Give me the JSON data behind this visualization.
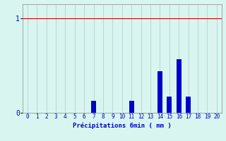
{
  "values": [
    0,
    0,
    0,
    0,
    0,
    0,
    0,
    0.13,
    0,
    0,
    0,
    0.13,
    0,
    0,
    0.44,
    0.17,
    0.57,
    0.17,
    0,
    0,
    0
  ],
  "categories": [
    0,
    1,
    2,
    3,
    4,
    5,
    6,
    7,
    8,
    9,
    10,
    11,
    12,
    13,
    14,
    15,
    16,
    17,
    18,
    19,
    20
  ],
  "bar_color": "#0000cc",
  "background_color": "#d8f5f0",
  "grid_color": "#b0c8c8",
  "hline_color": "#cc0000",
  "text_color": "#0000cc",
  "xlabel": "Précipitations 6min ( mm )",
  "ytick_labels": [
    "0",
    "1"
  ],
  "yticks": [
    0,
    1
  ],
  "ylim": [
    0,
    1.15
  ],
  "xlim": [
    -0.5,
    20.5
  ],
  "figsize": [
    3.2,
    2.0
  ],
  "dpi": 100
}
